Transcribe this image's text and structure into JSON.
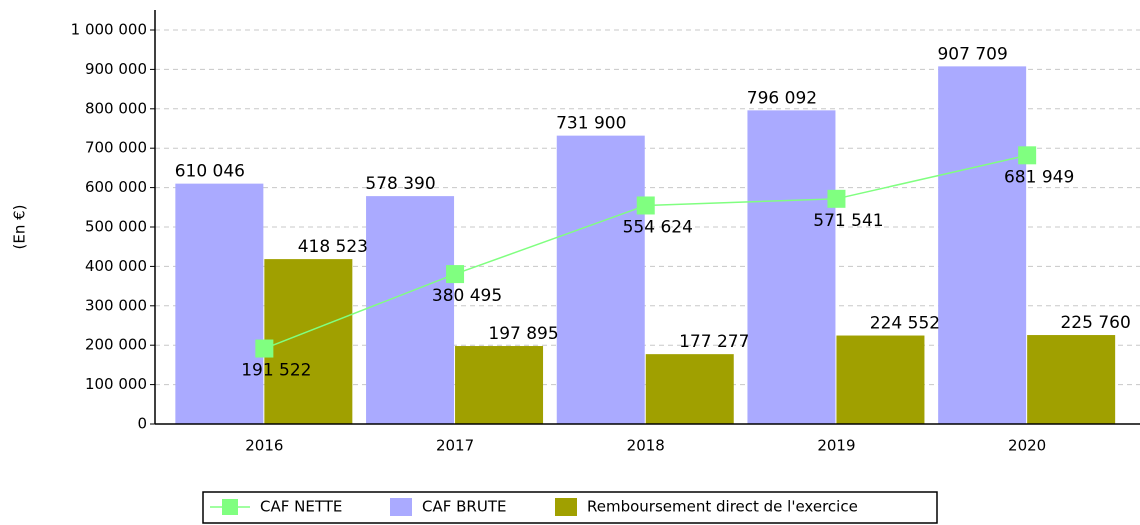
{
  "chart_data": {
    "type": "bar_line",
    "y_label": "(En €)",
    "categories": [
      "2016",
      "2017",
      "2018",
      "2019",
      "2020"
    ],
    "series": [
      {
        "name": "CAF NETTE",
        "type": "line",
        "color": "#80ff80",
        "values": [
          191522,
          380495,
          554624,
          571541,
          681949
        ],
        "value_labels": [
          "191 522",
          "380 495",
          "554 624",
          "571 541",
          "681 949"
        ]
      },
      {
        "name": "CAF BRUTE",
        "type": "bar",
        "color": "#aaaaff",
        "values": [
          610046,
          578390,
          731900,
          796092,
          907709
        ],
        "value_labels": [
          "610 046",
          "578 390",
          "731 900",
          "796 092",
          "907 709"
        ]
      },
      {
        "name": "Remboursement direct de l'exercice",
        "type": "bar",
        "color": "#a0a000",
        "values": [
          418523,
          197895,
          177277,
          224552,
          225760
        ],
        "value_labels": [
          "418 523",
          "197 895",
          "177 277",
          "224 552",
          "225 760"
        ]
      }
    ],
    "ylim": [
      0,
      1000000
    ],
    "yticks": [
      0,
      {
        "value": 100000,
        "label": "100 000"
      },
      {
        "value": 200000,
        "label": "200 000"
      },
      {
        "value": 300000,
        "label": "300 000"
      },
      {
        "value": 400000,
        "label": "400 000"
      },
      {
        "value": 500000,
        "label": "500 000"
      },
      {
        "value": 600000,
        "label": "600 000"
      },
      {
        "value": 700000,
        "label": "700 000"
      },
      {
        "value": 800000,
        "label": "800 000"
      },
      {
        "value": 900000,
        "label": "900 000"
      },
      {
        "value": 1000000,
        "label": "1 000 000"
      }
    ],
    "grid": true,
    "legend": "bottom"
  }
}
